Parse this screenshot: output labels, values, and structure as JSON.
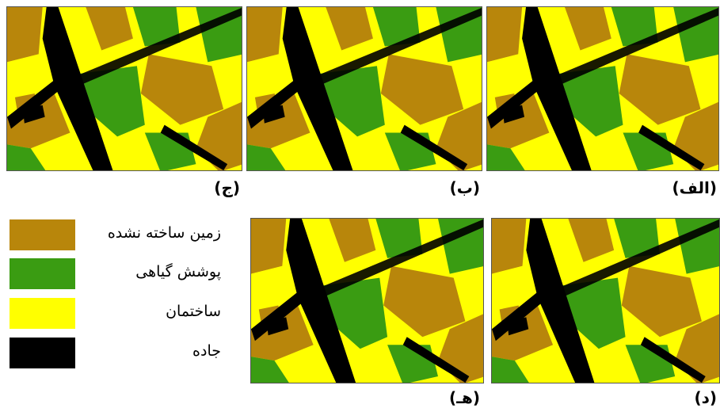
{
  "panels": [
    {
      "label": "(الف)"
    },
    {
      "label": "(ب)"
    },
    {
      "label": "(ج)"
    },
    {
      "label": "(د)"
    },
    {
      "label": "(هـ)"
    }
  ],
  "legend": {
    "items": [
      {
        "label": "زمین ساخته نشده",
        "color": "#b8860b"
      },
      {
        "label": "پوشش گیاهی",
        "color": "#3a9c12"
      },
      {
        "label": "ساختمان",
        "color": "#ffff00"
      },
      {
        "label": "جاده",
        "color": "#000000"
      }
    ]
  }
}
